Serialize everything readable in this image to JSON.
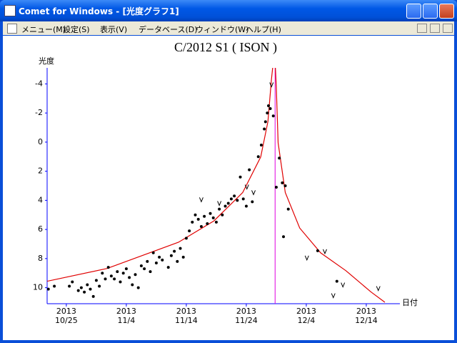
{
  "window": {
    "title": "Comet for Windows - [光度グラフ1]",
    "menu": [
      "メニュー(M)",
      "設定(S)",
      "表示(V)",
      "データベース(D)",
      "ウィンドウ(W)",
      "ヘルプ(H)"
    ]
  },
  "chart_data": {
    "type": "scatter",
    "title": "C/2012 S1 ( ISON )",
    "y_label": "光度",
    "x_label": "日付",
    "xlim": [
      294.8,
      353.6
    ],
    "ylim": [
      11.1,
      -5.1
    ],
    "yticks": [
      -4,
      -2,
      0,
      2,
      4,
      6,
      8,
      10
    ],
    "xticks": [
      {
        "value": 298,
        "label": [
          "2013",
          "10/25"
        ]
      },
      {
        "value": 308,
        "label": [
          "2013",
          "11/4"
        ]
      },
      {
        "value": 318,
        "label": [
          "2013",
          "11/14"
        ]
      },
      {
        "value": 328,
        "label": [
          "2013",
          "11/24"
        ]
      },
      {
        "value": 338,
        "label": [
          "2013",
          "12/4"
        ]
      },
      {
        "value": 348,
        "label": [
          "2013",
          "12/14"
        ]
      }
    ],
    "points": {
      "color": "#000000",
      "x": [
        295,
        296,
        298.5,
        299,
        300,
        300.5,
        301,
        301.5,
        302,
        302.5,
        303,
        303.5,
        304,
        304.5,
        305,
        305.5,
        306,
        306.5,
        307,
        307.5,
        308,
        308.5,
        309,
        309.5,
        310,
        310.5,
        311,
        311.5,
        312,
        312.5,
        313,
        313.5,
        314,
        315,
        315.5,
        316,
        316.5,
        317,
        317.5,
        318,
        318.5,
        319,
        319.5,
        320,
        320.5,
        321,
        321.5,
        322,
        322.5,
        323,
        323.5,
        324,
        324.5,
        325,
        325.5,
        326,
        326.5,
        327,
        327.5,
        328,
        328.5,
        329,
        330,
        330.5,
        331,
        331.2,
        331.5,
        331.7,
        332,
        332.5,
        333,
        333.5,
        334,
        334.5,
        335,
        334.2,
        339.9,
        343.1
      ],
      "y": [
        10.1,
        9.9,
        9.9,
        9.6,
        10.2,
        10.0,
        10.3,
        9.8,
        10.1,
        10.6,
        9.5,
        9.9,
        9.0,
        9.4,
        8.6,
        9.2,
        9.4,
        8.9,
        9.6,
        9.0,
        8.7,
        9.3,
        9.8,
        9.1,
        10.0,
        8.5,
        8.7,
        8.2,
        8.9,
        7.6,
        8.3,
        7.9,
        8.1,
        8.6,
        7.8,
        7.5,
        8.2,
        7.3,
        7.9,
        6.6,
        6.1,
        5.5,
        5.0,
        5.3,
        5.8,
        5.1,
        5.6,
        4.9,
        5.2,
        5.5,
        4.6,
        5.0,
        4.4,
        4.2,
        3.9,
        3.7,
        4.0,
        2.4,
        3.9,
        4.4,
        1.9,
        4.1,
        1.0,
        0.2,
        -0.9,
        -1.4,
        -2.0,
        -2.5,
        -2.3,
        -1.8,
        3.1,
        1.1,
        2.8,
        3.0,
        4.6,
        6.5,
        7.46,
        9.56
      ]
    },
    "upper_limits": {
      "color": "#000000",
      "x": [
        332.2,
        328.1,
        329.2,
        320.5,
        323.5,
        338.1,
        341.1,
        342.5,
        344.1,
        350.0
      ],
      "y": [
        -3.95,
        3.07,
        3.46,
        3.95,
        4.2,
        7.95,
        7.51,
        10.54,
        9.8,
        10.05
      ]
    },
    "model_curve": {
      "color": "#e00000",
      "x": [
        294.8,
        304.8,
        316.7,
        322.6,
        327.4,
        330.4,
        331.6,
        332.2,
        332.5,
        332.8,
        333.0,
        333.3,
        334.5,
        336.9,
        340.4,
        344.6,
        348.8,
        351.1
      ],
      "y": [
        9.56,
        8.68,
        6.88,
        5.41,
        3.46,
        1.02,
        -1.41,
        -4.34,
        -5.5,
        -5.5,
        -3.85,
        0.05,
        3.46,
        5.9,
        7.61,
        8.83,
        10.3,
        11.0
      ]
    },
    "perihelion_line": {
      "x": 332.8,
      "color": "#e000e0"
    }
  }
}
